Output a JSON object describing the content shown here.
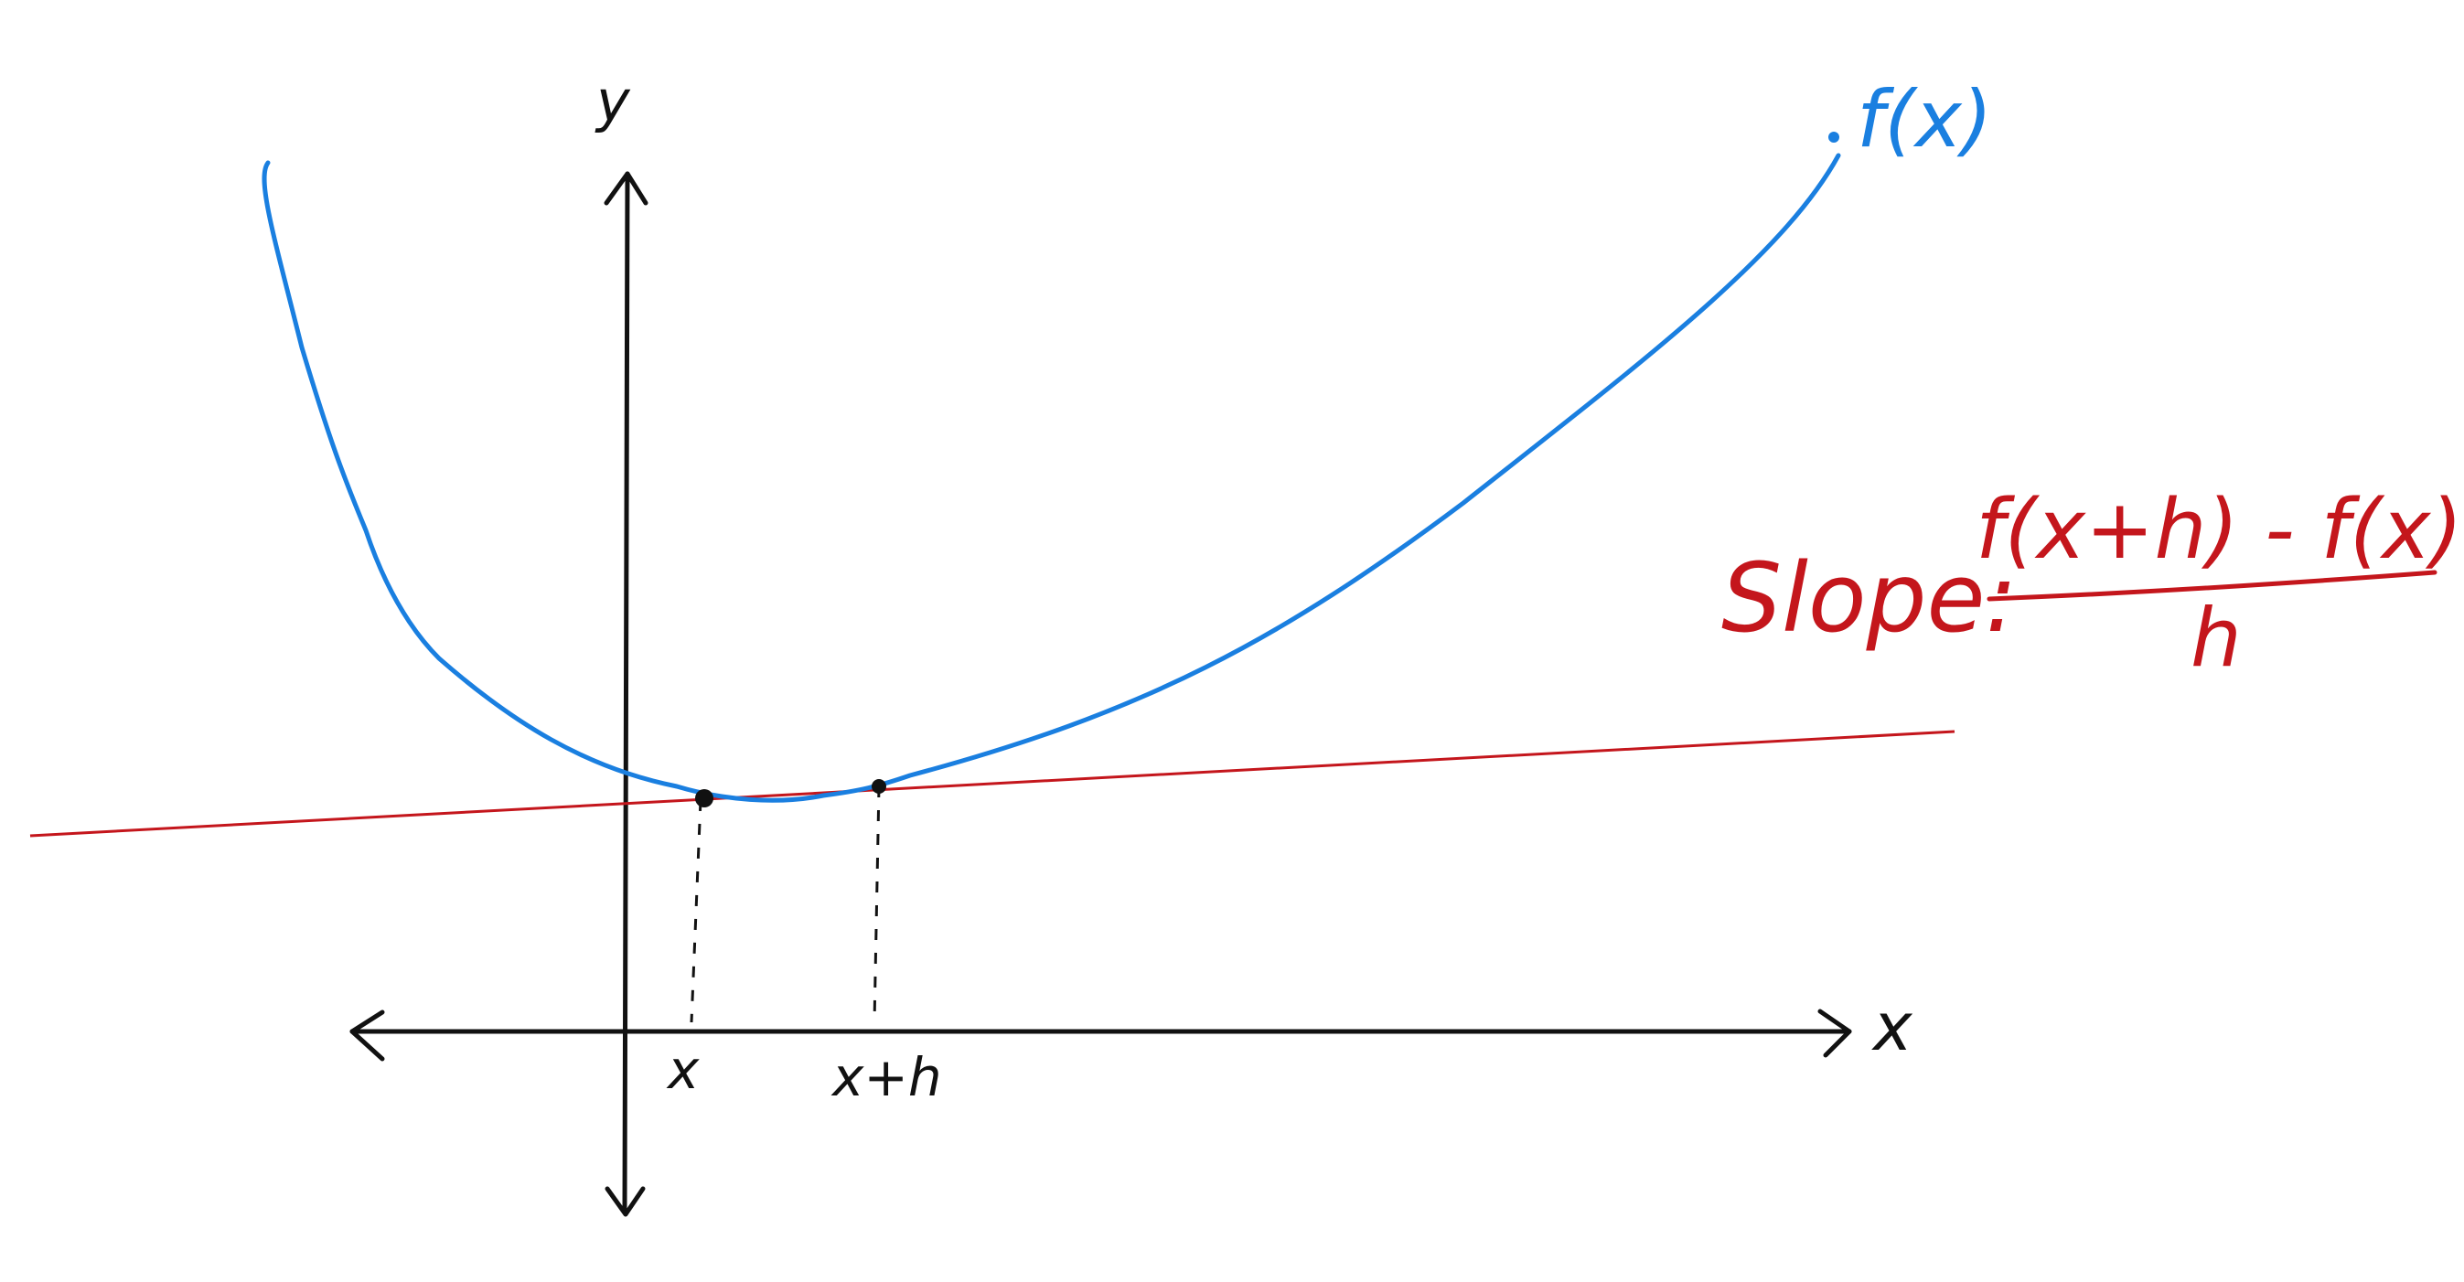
{
  "labels": {
    "y_axis": "y",
    "x_axis": "x",
    "curve": "f(x)",
    "point_x": "x",
    "point_xh": "x+h",
    "slope_prefix": "Slope:",
    "slope_numerator": "f(x+h) - f(x)",
    "slope_denominator": "h"
  },
  "colors": {
    "axis": "#111111",
    "curve": "#1a7fe0",
    "secant": "#c4161c",
    "dashed": "#111111"
  }
}
